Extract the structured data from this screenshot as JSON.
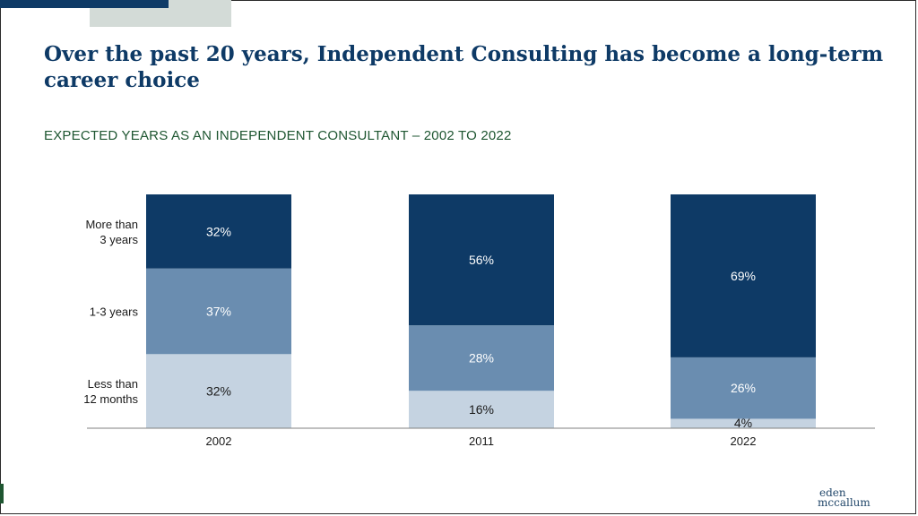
{
  "slide": {
    "title": "Over the past 20 years, Independent Consulting has become a long-term career choice",
    "subtitle": "EXPECTED YEARS AS AN INDEPENDENT CONSULTANT – 2002 TO 2022",
    "logo": {
      "line1": "eden",
      "line2": "mccallum"
    },
    "colors": {
      "accent": "#0e3a66",
      "subtitle": "#1e5631"
    }
  },
  "chart_data": {
    "type": "bar",
    "stacked": true,
    "categories": [
      "2002",
      "2011",
      "2022"
    ],
    "row_labels": [
      {
        "lines": [
          "More than",
          "3 years"
        ]
      },
      {
        "lines": [
          "1-3 years"
        ]
      },
      {
        "lines": [
          "Less than",
          "12 months"
        ]
      }
    ],
    "series": [
      {
        "values": [
          32,
          16,
          4
        ],
        "labels": [
          "32%",
          "16%",
          "4%"
        ],
        "color": "#c5d3e1",
        "label_color": "#1a1a1a"
      },
      {
        "values": [
          37,
          28,
          26
        ],
        "labels": [
          "37%",
          "28%",
          "26%"
        ],
        "color": "#6a8db0",
        "label_color": "#ffffff"
      },
      {
        "values": [
          32,
          56,
          69
        ],
        "labels": [
          "32%",
          "56%",
          "69%"
        ],
        "color": "#0e3a66",
        "label_color": "#ffffff"
      }
    ]
  }
}
